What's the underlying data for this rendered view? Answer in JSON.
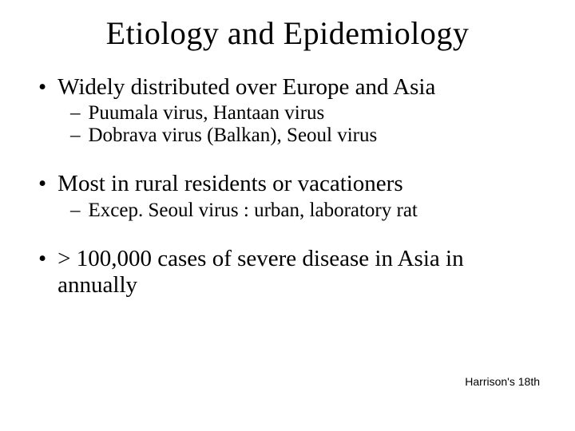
{
  "title": "Etiology and Epidemiology",
  "bullets": {
    "b1": "Widely distributed over Europe and Asia",
    "b1_1": "Puumala virus, Hantaan virus",
    "b1_2": "Dobrava virus (Balkan), Seoul virus",
    "b2": "Most in rural residents or vacationers",
    "b2_1": "Excep. Seoul virus : urban, laboratory rat",
    "b3": "> 100,000 cases of severe disease in Asia in annually"
  },
  "citation": "Harrison's 18th",
  "style": {
    "background_color": "#ffffff",
    "text_color": "#000000",
    "title_fontsize": 40,
    "l1_fontsize": 29,
    "l2_fontsize": 25,
    "citation_fontsize": 14,
    "l1_marker": "•",
    "l2_marker": "–"
  }
}
